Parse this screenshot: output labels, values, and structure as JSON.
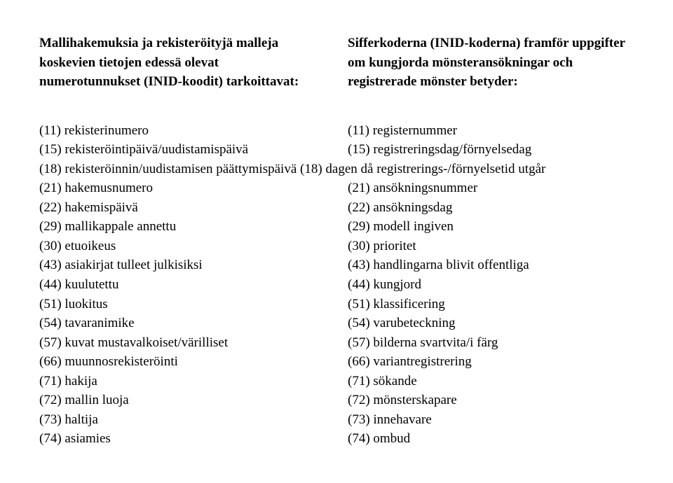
{
  "header": {
    "left": [
      "Mallihakemuksia ja rekisteröityjä malleja",
      "koskevien tietojen edessä olevat",
      "numerotunnukset (INID-koodit) tarkoittavat:"
    ],
    "right": [
      "Sifferkoderna (INID-koderna) framför uppgifter",
      "om kungjorda mönsteransökningar och",
      "registrerade mönster betyder:"
    ]
  },
  "rows": [
    {
      "left": "(11) rekisterinumero",
      "right": "(11) registernummer"
    },
    {
      "left": "(15) rekisteröintipäivä/uudistamispäivä",
      "right": "(15) registreringsdag/förnyelsedag"
    },
    {
      "full": "(18) rekisteröinnin/uudistamisen päättymispäivä (18) dagen då registrerings-/förnyelsetid utgår"
    },
    {
      "left": "(21) hakemusnumero",
      "right": "(21) ansökningsnummer"
    },
    {
      "left": "(22) hakemispäivä",
      "right": "(22) ansökningsdag"
    },
    {
      "left": "(29) mallikappale annettu",
      "right": "(29) modell ingiven"
    },
    {
      "left": "(30) etuoikeus",
      "right": "(30) prioritet"
    },
    {
      "left": "(43) asiakirjat tulleet julkisiksi",
      "right": "(43) handlingarna blivit offentliga"
    },
    {
      "left": "(44) kuulutettu",
      "right": "(44) kungjord"
    },
    {
      "left": "(51) luokitus",
      "right": "(51) klassificering"
    },
    {
      "left": "(54) tavaranimike",
      "right": "(54) varubeteckning"
    },
    {
      "left": "(57) kuvat mustavalkoiset/värilliset",
      "right": "(57) bilderna svartvita/i färg"
    },
    {
      "left": "(66) muunnosrekisteröinti",
      "right": "(66) variantregistrering"
    },
    {
      "left": "(71) hakija",
      "right": "(71) sökande"
    },
    {
      "left": "(72) mallin luoja",
      "right": "(72) mönsterskapare"
    },
    {
      "left": "(73) haltija",
      "right": "(73) innehavare"
    },
    {
      "left": "(74) asiamies",
      "right": "(74) ombud"
    }
  ]
}
